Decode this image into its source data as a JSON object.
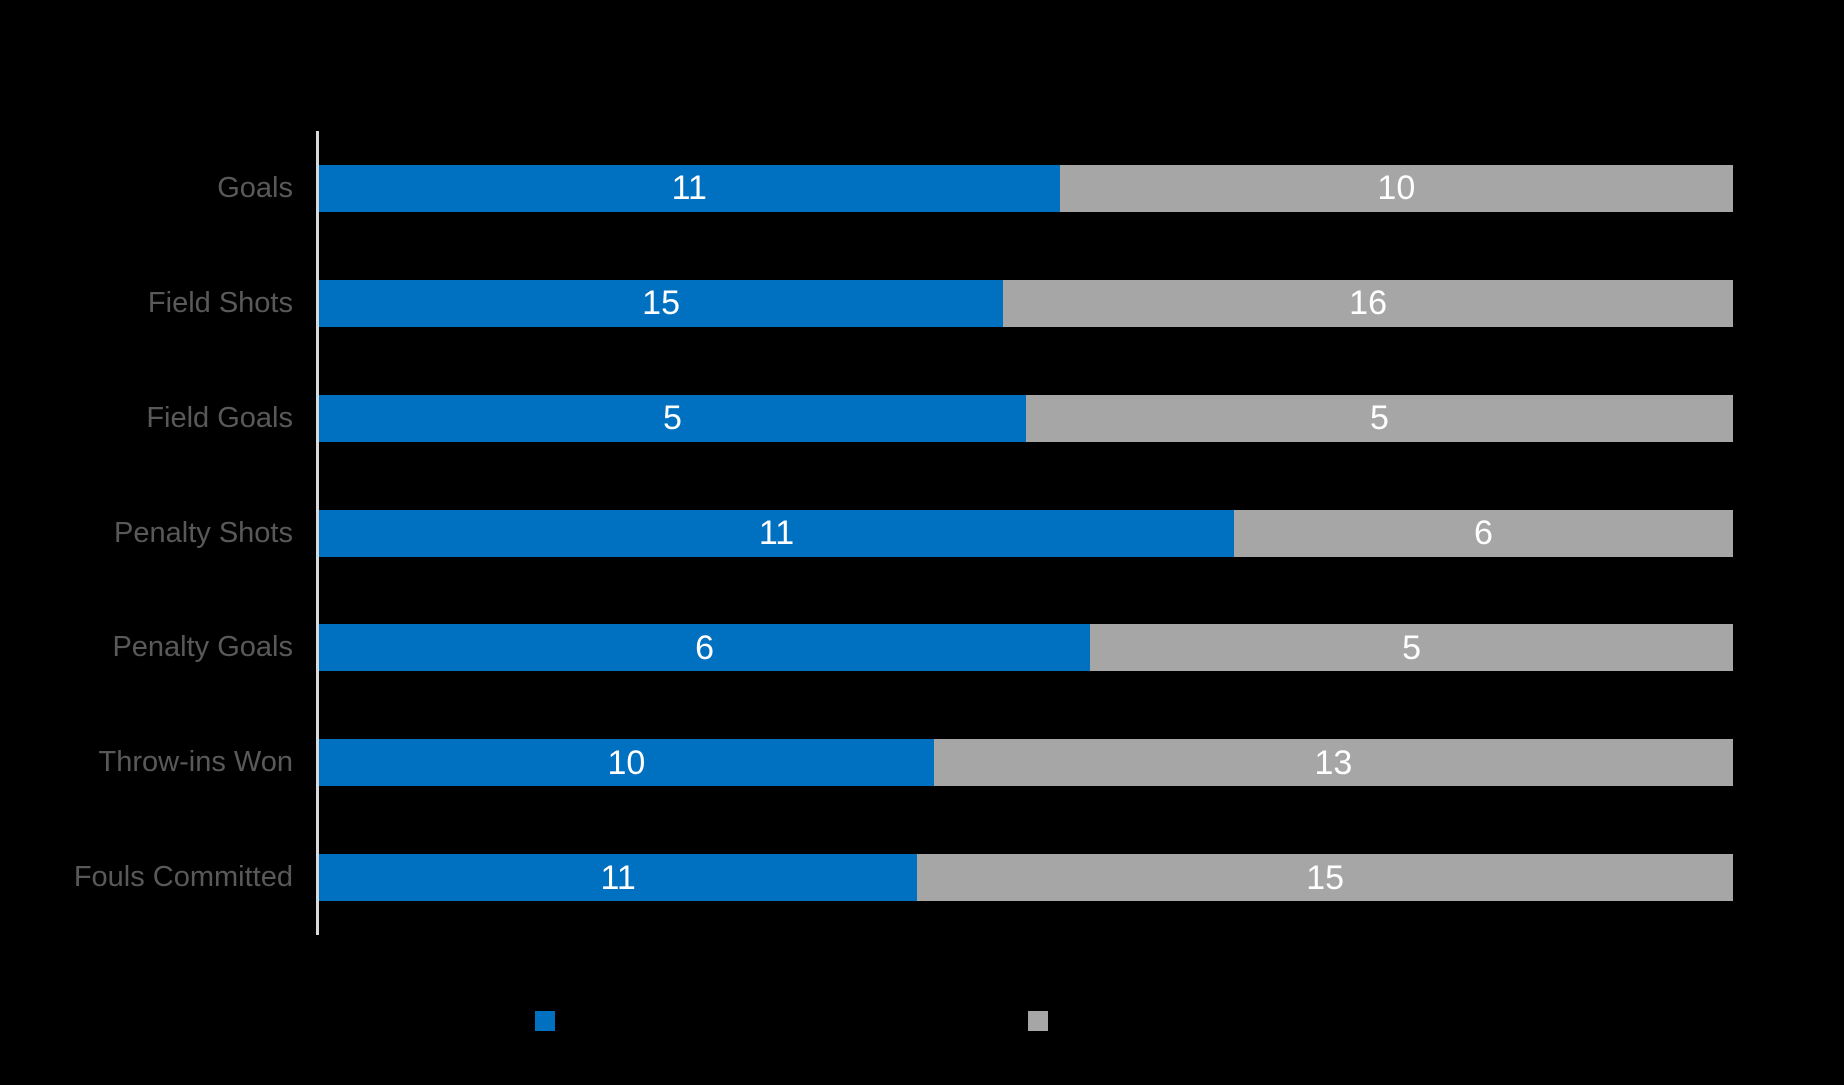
{
  "background_color": "#000000",
  "axis_color": "#D9D9D9",
  "category_label_color": "#595959",
  "value_label_color": "#FFFFFF",
  "chart_data": {
    "type": "bar",
    "orientation": "horizontal",
    "stacked": true,
    "normalized_100_percent": true,
    "title": "",
    "categories": [
      "Goals",
      "Field Shots",
      "Field Goals",
      "Penalty Shots",
      "Penalty Goals",
      "Throw-ins Won",
      "Fouls Committed"
    ],
    "series": [
      {
        "name": "blue",
        "color": "#0070C0",
        "values": [
          11,
          15,
          5,
          11,
          6,
          10,
          11
        ]
      },
      {
        "name": "gray",
        "color": "#A6A6A6",
        "values": [
          10,
          16,
          5,
          6,
          5,
          13,
          15
        ]
      }
    ],
    "value_labels": "inside-center",
    "grid": false,
    "xlabel": "",
    "ylabel": "",
    "legend_position": "bottom",
    "legend_text_visible": false
  },
  "legend": {
    "markers": [
      {
        "name": "blue-series-marker",
        "color": "#0070C0"
      },
      {
        "name": "gray-series-marker",
        "color": "#A6A6A6"
      }
    ]
  }
}
